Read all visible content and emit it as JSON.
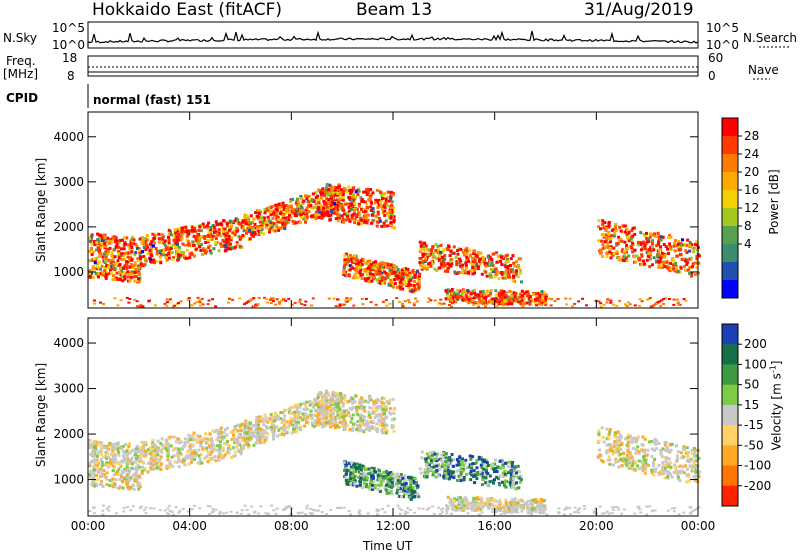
{
  "header": {
    "title": "Hokkaido East (fitACF)",
    "beam": "Beam 13",
    "date": "31/Aug/2019"
  },
  "left_labels": {
    "nsky": "N.Sky",
    "freq": "Freq.",
    "freq_unit": "[MHz]",
    "cpid": "CPID"
  },
  "right_labels": {
    "nsearch": "N.Search",
    "nave": "Nave"
  },
  "noise_axis": {
    "top": "10^5",
    "bottom": "10^0"
  },
  "freq_axis": {
    "left_top": "18",
    "left_bottom": "8",
    "right_top": "60",
    "right_bottom": "0"
  },
  "cpid_text": "normal (fast) 151",
  "chart_data": [
    {
      "type": "heatmap",
      "name": "power",
      "ylabel": "Slant Range [km]",
      "xlabel": "Time UT",
      "x_ticks": [
        "00:00",
        "04:00",
        "08:00",
        "12:00",
        "16:00",
        "20:00",
        "00:00"
      ],
      "y_ticks": [
        "1000",
        "2000",
        "3000",
        "4000"
      ],
      "ylim": [
        200,
        4550
      ],
      "colorbar_label": "Power [dB]",
      "colorbar_ticks": [
        "28",
        "24",
        "20",
        "16",
        "12",
        "8",
        "4"
      ],
      "colorbar_colors": [
        "#ff0000",
        "#ff3a00",
        "#ff7a00",
        "#ffaa00",
        "#f5d000",
        "#a5c820",
        "#58a050",
        "#3a8e6e",
        "#1f4fb0",
        "#0000ff"
      ]
    },
    {
      "type": "heatmap",
      "name": "velocity",
      "ylabel": "Slant Range [km]",
      "xlabel": "Time UT",
      "x_ticks": [
        "00:00",
        "04:00",
        "08:00",
        "12:00",
        "16:00",
        "20:00",
        "00:00"
      ],
      "y_ticks": [
        "1000",
        "2000",
        "3000",
        "4000"
      ],
      "ylim": [
        200,
        4550
      ],
      "colorbar_label": "Velocity [m s",
      "colorbar_label_sup": "-1",
      "colorbar_label_end": "]",
      "colorbar_ticks": [
        "200",
        "100",
        "50",
        "15",
        "-15",
        "-50",
        "-100",
        "-200"
      ],
      "colorbar_colors": [
        "#1b3fb5",
        "#15704a",
        "#3f9a3f",
        "#7ecb46",
        "#c8c8c8",
        "#ffd166",
        "#ffaa22",
        "#ff7700",
        "#ff2200"
      ]
    }
  ],
  "x_title": "Time UT"
}
